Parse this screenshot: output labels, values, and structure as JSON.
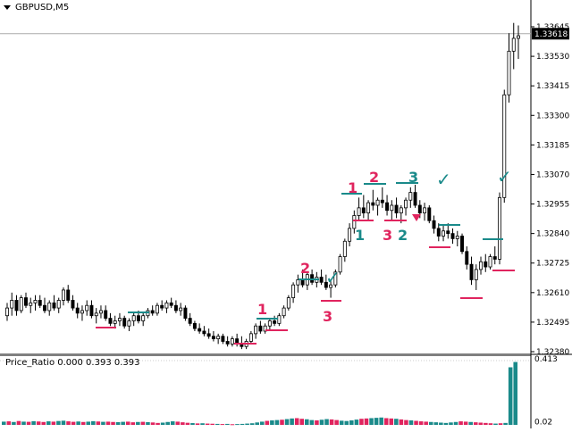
{
  "window": {
    "symbol_label": "GBPUSD,M5"
  },
  "price_panel": {
    "ymin": 1.3238,
    "ymax": 1.33645,
    "current_price": "1.33618",
    "current_value": 1.33618,
    "price_labels": [
      "1.33645",
      "1.33530",
      "1.33415",
      "1.33300",
      "1.33185",
      "1.33070",
      "1.32955",
      "1.32840",
      "1.32725",
      "1.32610",
      "1.32495",
      "1.32380"
    ],
    "label_values": [
      1.33645,
      1.3353,
      1.33415,
      1.333,
      1.33185,
      1.3307,
      1.32955,
      1.3284,
      1.32725,
      1.3261,
      1.32495,
      1.3238
    ],
    "label_color": "#000000",
    "bull_candle_fill": "#ffffff",
    "bear_candle_fill": "#000000",
    "candles": [
      [
        1.3252,
        1.3257,
        1.325,
        1.3255
      ],
      [
        1.3255,
        1.3261,
        1.3252,
        1.3258
      ],
      [
        1.3258,
        1.326,
        1.3252,
        1.3254
      ],
      [
        1.3254,
        1.326,
        1.3253,
        1.3259
      ],
      [
        1.3259,
        1.3261,
        1.3255,
        1.3256
      ],
      [
        1.3256,
        1.3259,
        1.3253,
        1.3257
      ],
      [
        1.3257,
        1.326,
        1.3254,
        1.3258
      ],
      [
        1.3258,
        1.326,
        1.3255,
        1.3256
      ],
      [
        1.3256,
        1.3259,
        1.3253,
        1.3254
      ],
      [
        1.3254,
        1.3258,
        1.3252,
        1.3257
      ],
      [
        1.3257,
        1.326,
        1.3254,
        1.3255
      ],
      [
        1.3255,
        1.3259,
        1.3253,
        1.3258
      ],
      [
        1.3258,
        1.3263,
        1.3256,
        1.3262
      ],
      [
        1.3262,
        1.3264,
        1.3257,
        1.3258
      ],
      [
        1.3258,
        1.326,
        1.3254,
        1.3255
      ],
      [
        1.3255,
        1.3257,
        1.3251,
        1.3253
      ],
      [
        1.3253,
        1.3256,
        1.325,
        1.3254
      ],
      [
        1.3254,
        1.3258,
        1.3252,
        1.3256
      ],
      [
        1.3256,
        1.3258,
        1.3251,
        1.3252
      ],
      [
        1.3252,
        1.3255,
        1.3249,
        1.3253
      ],
      [
        1.3253,
        1.3256,
        1.3251,
        1.3254
      ],
      [
        1.3254,
        1.3256,
        1.325,
        1.3251
      ],
      [
        1.3251,
        1.3253,
        1.3248,
        1.3249
      ],
      [
        1.3249,
        1.3252,
        1.3247,
        1.325
      ],
      [
        1.325,
        1.3253,
        1.3248,
        1.3251
      ],
      [
        1.3251,
        1.3252,
        1.3247,
        1.3248
      ],
      [
        1.3248,
        1.3251,
        1.3246,
        1.325
      ],
      [
        1.325,
        1.3253,
        1.3248,
        1.3252
      ],
      [
        1.3252,
        1.3254,
        1.3249,
        1.325
      ],
      [
        1.325,
        1.3253,
        1.3248,
        1.3252
      ],
      [
        1.3252,
        1.3255,
        1.3251,
        1.3254
      ],
      [
        1.3254,
        1.3256,
        1.3252,
        1.3253
      ],
      [
        1.3253,
        1.3257,
        1.3252,
        1.3256
      ],
      [
        1.3256,
        1.3258,
        1.3254,
        1.3255
      ],
      [
        1.3255,
        1.3258,
        1.3253,
        1.3257
      ],
      [
        1.3257,
        1.3259,
        1.3255,
        1.3256
      ],
      [
        1.3256,
        1.3258,
        1.3253,
        1.3254
      ],
      [
        1.3254,
        1.3257,
        1.3252,
        1.3255
      ],
      [
        1.3255,
        1.3256,
        1.325,
        1.3251
      ],
      [
        1.3251,
        1.3253,
        1.3248,
        1.3249
      ],
      [
        1.3249,
        1.325,
        1.3246,
        1.3247
      ],
      [
        1.3247,
        1.3249,
        1.3245,
        1.3246
      ],
      [
        1.3246,
        1.3248,
        1.3244,
        1.3245
      ],
      [
        1.3245,
        1.3247,
        1.3243,
        1.3244
      ],
      [
        1.3244,
        1.3246,
        1.3242,
        1.3243
      ],
      [
        1.3243,
        1.3245,
        1.3241,
        1.3244
      ],
      [
        1.3244,
        1.3245,
        1.3241,
        1.3242
      ],
      [
        1.3242,
        1.3244,
        1.324,
        1.3241
      ],
      [
        1.3241,
        1.3244,
        1.324,
        1.3243
      ],
      [
        1.3243,
        1.3245,
        1.324,
        1.3241
      ],
      [
        1.3241,
        1.3244,
        1.3239,
        1.324
      ],
      [
        1.324,
        1.3243,
        1.3239,
        1.3242
      ],
      [
        1.3242,
        1.3246,
        1.3241,
        1.3245
      ],
      [
        1.3245,
        1.3249,
        1.3243,
        1.3248
      ],
      [
        1.3248,
        1.325,
        1.3245,
        1.3246
      ],
      [
        1.3246,
        1.3249,
        1.3245,
        1.3248
      ],
      [
        1.3248,
        1.3251,
        1.3246,
        1.325
      ],
      [
        1.325,
        1.3252,
        1.3248,
        1.3249
      ],
      [
        1.3249,
        1.3253,
        1.3248,
        1.3252
      ],
      [
        1.3252,
        1.3256,
        1.3251,
        1.3255
      ],
      [
        1.3255,
        1.326,
        1.3254,
        1.3259
      ],
      [
        1.3259,
        1.3265,
        1.3257,
        1.3264
      ],
      [
        1.3264,
        1.3268,
        1.3261,
        1.3266
      ],
      [
        1.3266,
        1.327,
        1.3263,
        1.3264
      ],
      [
        1.3264,
        1.3269,
        1.3262,
        1.3268
      ],
      [
        1.3268,
        1.327,
        1.3264,
        1.3265
      ],
      [
        1.3265,
        1.3269,
        1.3263,
        1.3267
      ],
      [
        1.3267,
        1.327,
        1.3264,
        1.3265
      ],
      [
        1.3265,
        1.3268,
        1.3262,
        1.3263
      ],
      [
        1.3263,
        1.3266,
        1.3259,
        1.3264
      ],
      [
        1.3264,
        1.327,
        1.3263,
        1.3269
      ],
      [
        1.3269,
        1.3276,
        1.3268,
        1.3275
      ],
      [
        1.3275,
        1.3282,
        1.3273,
        1.3281
      ],
      [
        1.3281,
        1.3288,
        1.3279,
        1.3286
      ],
      [
        1.3286,
        1.3293,
        1.3284,
        1.3291
      ],
      [
        1.3291,
        1.3298,
        1.3289,
        1.3294
      ],
      [
        1.3294,
        1.3299,
        1.329,
        1.3292
      ],
      [
        1.3292,
        1.3297,
        1.3289,
        1.3296
      ],
      [
        1.3296,
        1.3301,
        1.3293,
        1.3295
      ],
      [
        1.3295,
        1.3298,
        1.3291,
        1.3297
      ],
      [
        1.3297,
        1.3302,
        1.3294,
        1.3296
      ],
      [
        1.3296,
        1.3299,
        1.3291,
        1.3293
      ],
      [
        1.3293,
        1.3297,
        1.3289,
        1.3295
      ],
      [
        1.3295,
        1.3298,
        1.329,
        1.3292
      ],
      [
        1.3292,
        1.3295,
        1.3288,
        1.3294
      ],
      [
        1.3294,
        1.3298,
        1.3291,
        1.3297
      ],
      [
        1.3297,
        1.3302,
        1.3294,
        1.33
      ],
      [
        1.33,
        1.3303,
        1.3294,
        1.3295
      ],
      [
        1.3295,
        1.3297,
        1.329,
        1.3292
      ],
      [
        1.3292,
        1.3296,
        1.3289,
        1.3294
      ],
      [
        1.3294,
        1.3295,
        1.3288,
        1.3289
      ],
      [
        1.3289,
        1.3291,
        1.3284,
        1.3286
      ],
      [
        1.3286,
        1.3288,
        1.3281,
        1.3283
      ],
      [
        1.3283,
        1.3287,
        1.3281,
        1.3285
      ],
      [
        1.3285,
        1.3288,
        1.3282,
        1.3284
      ],
      [
        1.3284,
        1.3286,
        1.328,
        1.3282
      ],
      [
        1.3282,
        1.3285,
        1.3279,
        1.3283
      ],
      [
        1.3283,
        1.3284,
        1.3276,
        1.3277
      ],
      [
        1.3277,
        1.3279,
        1.327,
        1.3272
      ],
      [
        1.3272,
        1.3275,
        1.3264,
        1.3266
      ],
      [
        1.3266,
        1.3272,
        1.3262,
        1.327
      ],
      [
        1.327,
        1.3275,
        1.3268,
        1.3273
      ],
      [
        1.3273,
        1.3276,
        1.3269,
        1.3271
      ],
      [
        1.3271,
        1.3276,
        1.327,
        1.3275
      ],
      [
        1.3275,
        1.3279,
        1.3272,
        1.3274
      ],
      [
        1.3274,
        1.33,
        1.3272,
        1.3298
      ],
      [
        1.3298,
        1.334,
        1.3296,
        1.3338
      ],
      [
        1.3338,
        1.3362,
        1.3335,
        1.3355
      ],
      [
        1.3355,
        1.3366,
        1.3348,
        1.336
      ],
      [
        1.336,
        1.3365,
        1.3352,
        1.3361
      ]
    ]
  },
  "annotations": {
    "red_color": "#e0245e",
    "teal_color": "#1a8a8a",
    "label_1": "1",
    "label_2": "2",
    "label_3": "3",
    "check_mark": "✓"
  },
  "indicator_panel": {
    "label": "Price_Ratio 0.000 0.393 0.393",
    "ymin": 0.0,
    "ymax": 0.413,
    "axis_labels": [
      "0.413",
      "0.02"
    ],
    "axis_values": [
      0.413,
      0.02
    ],
    "bull_color": "#1a8a8a",
    "bear_color": "#e0245e",
    "bars": [
      0.02,
      0.022,
      0.018,
      0.024,
      0.02,
      0.019,
      0.023,
      0.021,
      0.018,
      0.022,
      0.02,
      0.024,
      0.026,
      0.022,
      0.019,
      0.021,
      0.018,
      0.02,
      0.023,
      0.021,
      0.019,
      0.02,
      0.018,
      0.017,
      0.019,
      0.02,
      0.016,
      0.018,
      0.019,
      0.017,
      0.015,
      0.012,
      0.014,
      0.018,
      0.022,
      0.02,
      0.016,
      0.013,
      0.011,
      0.009,
      0.01,
      0.008,
      0.007,
      0.006,
      0.005,
      0.006,
      0.004,
      0.005,
      0.006,
      0.008,
      0.01,
      0.015,
      0.02,
      0.025,
      0.028,
      0.03,
      0.032,
      0.036,
      0.04,
      0.042,
      0.038,
      0.035,
      0.03,
      0.028,
      0.032,
      0.036,
      0.034,
      0.03,
      0.026,
      0.024,
      0.028,
      0.033,
      0.038,
      0.04,
      0.042,
      0.044,
      0.046,
      0.042,
      0.04,
      0.038,
      0.034,
      0.03,
      0.028,
      0.025,
      0.022,
      0.02,
      0.018,
      0.016,
      0.014,
      0.012,
      0.015,
      0.018,
      0.022,
      0.02,
      0.018,
      0.016,
      0.014,
      0.012,
      0.01,
      0.008,
      0.01,
      0.012,
      0.36,
      0.393
    ],
    "bar_dirs": [
      1,
      0,
      1,
      0,
      1,
      0,
      1,
      0,
      0,
      1,
      0,
      1,
      1,
      0,
      0,
      1,
      0,
      1,
      1,
      0,
      1,
      0,
      0,
      1,
      1,
      0,
      0,
      1,
      0,
      1,
      0,
      0,
      1,
      1,
      1,
      0,
      0,
      0,
      1,
      0,
      1,
      0,
      0,
      1,
      0,
      1,
      0,
      1,
      1,
      1,
      1,
      1,
      1,
      0,
      1,
      1,
      0,
      1,
      1,
      0,
      0,
      1,
      1,
      0,
      1,
      1,
      0,
      0,
      1,
      1,
      1,
      1,
      0,
      0,
      1,
      1,
      1,
      0,
      0,
      1,
      0,
      0,
      1,
      0,
      0,
      0,
      1,
      1,
      1,
      1,
      1,
      1,
      0,
      0,
      1,
      0,
      0,
      0,
      0,
      1,
      0,
      1,
      1,
      1
    ]
  }
}
